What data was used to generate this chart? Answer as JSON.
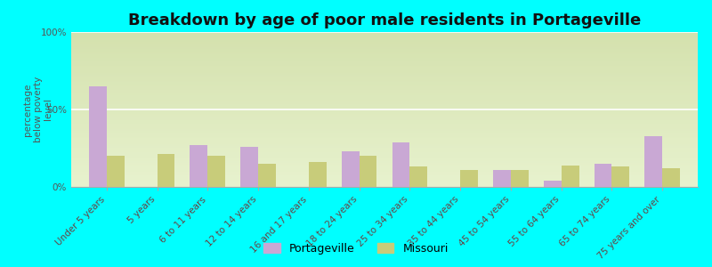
{
  "title": "Breakdown by age of poor male residents in Portageville",
  "ylabel": "percentage\nbelow poverty\nlevel",
  "categories": [
    "Under 5 years",
    "5 years",
    "6 to 11 years",
    "12 to 14 years",
    "16 and 17 years",
    "18 to 24 years",
    "25 to 34 years",
    "35 to 44 years",
    "45 to 54 years",
    "55 to 64 years",
    "65 to 74 years",
    "75 years and over"
  ],
  "portageville": [
    65,
    0,
    27,
    26,
    0,
    23,
    29,
    0,
    11,
    4,
    15,
    33
  ],
  "missouri": [
    20,
    21,
    20,
    15,
    16,
    20,
    13,
    11,
    11,
    14,
    13,
    12
  ],
  "portageville_color": "#c9a8d4",
  "missouri_color": "#c8cc7a",
  "background_color": "#00ffff",
  "plot_bg_color": "#e8f0cc",
  "ylim": [
    0,
    100
  ],
  "yticks": [
    0,
    50,
    100
  ],
  "ytick_labels": [
    "0%",
    "50%",
    "100%"
  ],
  "bar_width": 0.35,
  "legend_portageville": "Portageville",
  "legend_missouri": "Missouri",
  "title_fontsize": 13,
  "label_fontsize": 7.5,
  "tick_fontsize": 7.5
}
